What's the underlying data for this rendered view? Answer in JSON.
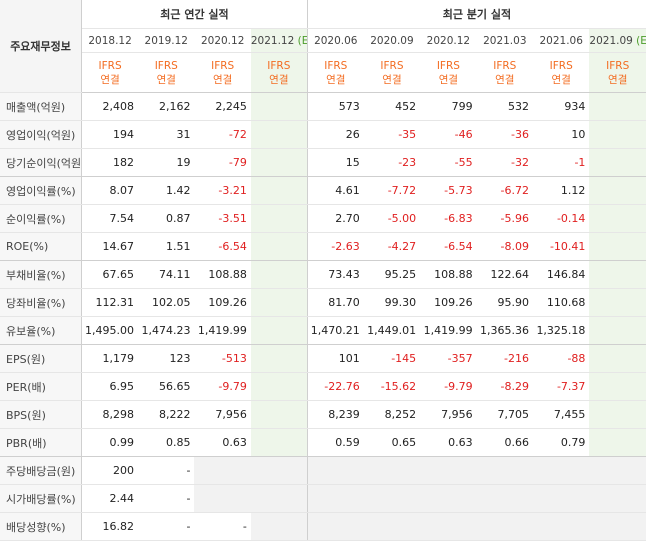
{
  "header": {
    "label_title": "주요재무정보",
    "annual_title": "최근 연간 실적",
    "quarter_title": "최근 분기 실적",
    "annual_periods": [
      "2018.12",
      "2019.12",
      "2020.12",
      "2021.12"
    ],
    "quarter_periods": [
      "2020.06",
      "2020.09",
      "2020.12",
      "2021.03",
      "2021.06",
      "2021.09"
    ],
    "estimate_mark": "(E)",
    "basis_line1": "IFRS",
    "basis_line2": "연결"
  },
  "rows": [
    {
      "label": "매출액(억원)",
      "annual": [
        "2,408",
        "2,162",
        "2,245",
        ""
      ],
      "quarter": [
        "573",
        "452",
        "799",
        "532",
        "934",
        ""
      ]
    },
    {
      "label": "영업이익(억원)",
      "annual": [
        "194",
        "31",
        "-72",
        ""
      ],
      "quarter": [
        "26",
        "-35",
        "-46",
        "-36",
        "10",
        ""
      ]
    },
    {
      "label": "당기순이익(억원)",
      "annual": [
        "182",
        "19",
        "-79",
        ""
      ],
      "quarter": [
        "15",
        "-23",
        "-55",
        "-32",
        "-1",
        ""
      ]
    },
    {
      "label": "영업이익률(%)",
      "annual": [
        "8.07",
        "1.42",
        "-3.21",
        ""
      ],
      "quarter": [
        "4.61",
        "-7.72",
        "-5.73",
        "-6.72",
        "1.12",
        ""
      ]
    },
    {
      "label": "순이익률(%)",
      "annual": [
        "7.54",
        "0.87",
        "-3.51",
        ""
      ],
      "quarter": [
        "2.70",
        "-5.00",
        "-6.83",
        "-5.96",
        "-0.14",
        ""
      ]
    },
    {
      "label": "ROE(%)",
      "annual": [
        "14.67",
        "1.51",
        "-6.54",
        ""
      ],
      "quarter": [
        "-2.63",
        "-4.27",
        "-6.54",
        "-8.09",
        "-10.41",
        ""
      ]
    },
    {
      "label": "부채비율(%)",
      "annual": [
        "67.65",
        "74.11",
        "108.88",
        ""
      ],
      "quarter": [
        "73.43",
        "95.25",
        "108.88",
        "122.64",
        "146.84",
        ""
      ]
    },
    {
      "label": "당좌비율(%)",
      "annual": [
        "112.31",
        "102.05",
        "109.26",
        ""
      ],
      "quarter": [
        "81.70",
        "99.30",
        "109.26",
        "95.90",
        "110.68",
        ""
      ]
    },
    {
      "label": "유보율(%)",
      "annual": [
        "1,495.00",
        "1,474.23",
        "1,419.99",
        ""
      ],
      "quarter": [
        "1,470.21",
        "1,449.01",
        "1,419.99",
        "1,365.36",
        "1,325.18",
        ""
      ]
    },
    {
      "label": "EPS(원)",
      "annual": [
        "1,179",
        "123",
        "-513",
        ""
      ],
      "quarter": [
        "101",
        "-145",
        "-357",
        "-216",
        "-88",
        ""
      ]
    },
    {
      "label": "PER(배)",
      "annual": [
        "6.95",
        "56.65",
        "-9.79",
        ""
      ],
      "quarter": [
        "-22.76",
        "-15.62",
        "-9.79",
        "-8.29",
        "-7.37",
        ""
      ]
    },
    {
      "label": "BPS(원)",
      "annual": [
        "8,298",
        "8,222",
        "7,956",
        ""
      ],
      "quarter": [
        "8,239",
        "8,252",
        "7,956",
        "7,705",
        "7,455",
        ""
      ]
    },
    {
      "label": "PBR(배)",
      "annual": [
        "0.99",
        "0.85",
        "0.63",
        ""
      ],
      "quarter": [
        "0.59",
        "0.65",
        "0.63",
        "0.66",
        "0.79",
        ""
      ]
    },
    {
      "label": "주당배당금(원)",
      "annual": [
        "200",
        "-",
        "",
        ""
      ],
      "quarter": [
        "",
        "",
        "",
        "",
        "",
        ""
      ]
    },
    {
      "label": "시가배당률(%)",
      "annual": [
        "2.44",
        "-",
        "",
        ""
      ],
      "quarter": [
        "",
        "",
        "",
        "",
        "",
        ""
      ]
    },
    {
      "label": "배당성향(%)",
      "annual": [
        "16.82",
        "-",
        "-",
        ""
      ],
      "quarter": [
        "",
        "",
        "",
        "",
        "",
        ""
      ]
    }
  ],
  "group_end_rows": [
    2,
    5,
    8,
    12
  ],
  "gray_rows": [
    13,
    14,
    15
  ],
  "colors": {
    "negative": "#e02020",
    "basis": "#f36c21",
    "estimate_bg": "#eef6ea",
    "estimate_mark": "#4b9c2a"
  }
}
